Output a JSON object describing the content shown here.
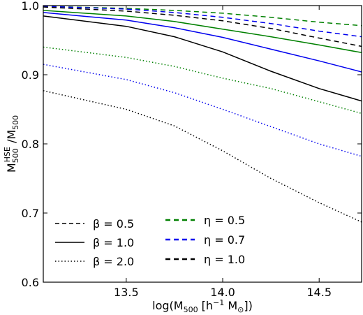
{
  "chart_data": {
    "type": "line",
    "xlabel": "log(M500 [h−1 M⊙])",
    "ylabel": "M500HSE / M500",
    "xlim": [
      13.07,
      14.72
    ],
    "ylim": [
      0.6,
      1.0
    ],
    "x_ticks": [
      13.5,
      14.0,
      14.5
    ],
    "y_ticks": [
      0.6,
      0.7,
      0.8,
      0.9,
      1.0
    ],
    "x_tick_labels": [
      "13.5",
      "14.0",
      "14.5"
    ],
    "y_tick_labels": [
      "0.6",
      "0.7",
      "0.8",
      "0.9",
      "1.0"
    ],
    "grid": false,
    "colors": {
      "eta_0_5": "#008000",
      "eta_0_7": "#0000ee",
      "eta_1_0": "#000000"
    },
    "legend": {
      "placement": "lower-left",
      "beta_entries": [
        {
          "label": "β = 0.5",
          "style": "dashed",
          "color": "#000000"
        },
        {
          "label": "β = 1.0",
          "style": "solid",
          "color": "#000000"
        },
        {
          "label": "β = 2.0",
          "style": "dotted",
          "color": "#000000"
        }
      ],
      "eta_entries": [
        {
          "label": "η = 0.5",
          "style": "dashed",
          "color": "#008000"
        },
        {
          "label": "η = 0.7",
          "style": "dashed",
          "color": "#0000ee"
        },
        {
          "label": "η = 1.0",
          "style": "dashed",
          "color": "#000000"
        }
      ]
    },
    "series": [
      {
        "beta": 0.5,
        "eta": 0.5,
        "style": "dashed",
        "color": "#008000",
        "x": [
          13.07,
          13.5,
          13.75,
          14.0,
          14.25,
          14.5,
          14.72
        ],
        "y": [
          0.999,
          0.996,
          0.993,
          0.989,
          0.983,
          0.976,
          0.971
        ]
      },
      {
        "beta": 0.5,
        "eta": 0.7,
        "style": "dashed",
        "color": "#0000ee",
        "x": [
          13.07,
          13.5,
          13.75,
          14.0,
          14.25,
          14.5,
          14.72
        ],
        "y": [
          0.999,
          0.995,
          0.99,
          0.983,
          0.974,
          0.963,
          0.955
        ]
      },
      {
        "beta": 0.5,
        "eta": 1.0,
        "style": "dashed",
        "color": "#000000",
        "x": [
          13.07,
          13.5,
          13.75,
          14.0,
          14.25,
          14.5,
          14.72
        ],
        "y": [
          0.998,
          0.992,
          0.986,
          0.978,
          0.967,
          0.953,
          0.941
        ]
      },
      {
        "beta": 1.0,
        "eta": 0.5,
        "style": "solid",
        "color": "#008000",
        "x": [
          13.07,
          13.5,
          13.75,
          14.0,
          14.25,
          14.5,
          14.72
        ],
        "y": [
          0.993,
          0.985,
          0.977,
          0.966,
          0.955,
          0.943,
          0.932
        ]
      },
      {
        "beta": 1.0,
        "eta": 0.7,
        "style": "solid",
        "color": "#0000ee",
        "x": [
          13.07,
          13.5,
          13.75,
          14.0,
          14.25,
          14.5,
          14.72
        ],
        "y": [
          0.99,
          0.979,
          0.968,
          0.954,
          0.937,
          0.92,
          0.904
        ]
      },
      {
        "beta": 1.0,
        "eta": 1.0,
        "style": "solid",
        "color": "#000000",
        "x": [
          13.07,
          13.5,
          13.75,
          14.0,
          14.25,
          14.5,
          14.72
        ],
        "y": [
          0.985,
          0.97,
          0.955,
          0.933,
          0.905,
          0.88,
          0.862
        ]
      },
      {
        "beta": 2.0,
        "eta": 0.5,
        "style": "dotted",
        "color": "#008000",
        "x": [
          13.07,
          13.5,
          13.75,
          14.0,
          14.25,
          14.5,
          14.72
        ],
        "y": [
          0.94,
          0.925,
          0.912,
          0.895,
          0.88,
          0.861,
          0.844
        ]
      },
      {
        "beta": 2.0,
        "eta": 0.7,
        "style": "dotted",
        "color": "#0000ee",
        "x": [
          13.07,
          13.5,
          13.75,
          14.0,
          14.25,
          14.5,
          14.72
        ],
        "y": [
          0.915,
          0.893,
          0.874,
          0.85,
          0.825,
          0.8,
          0.782
        ]
      },
      {
        "beta": 2.0,
        "eta": 1.0,
        "style": "dotted",
        "color": "#000000",
        "x": [
          13.07,
          13.5,
          13.75,
          14.0,
          14.25,
          14.5,
          14.72
        ],
        "y": [
          0.877,
          0.85,
          0.826,
          0.79,
          0.75,
          0.715,
          0.687
        ]
      }
    ]
  }
}
